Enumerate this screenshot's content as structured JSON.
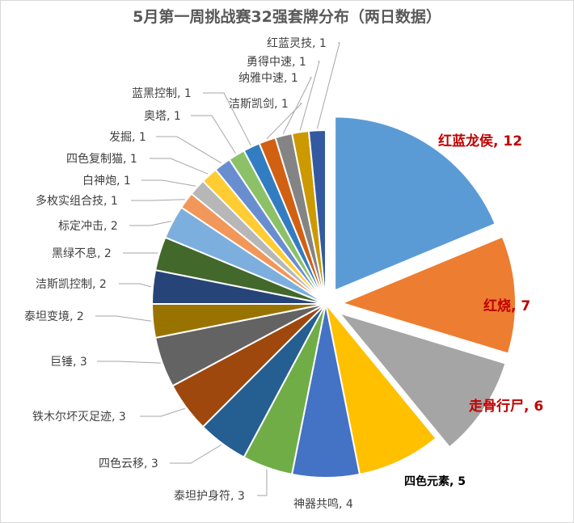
{
  "chart_data": {
    "type": "pie",
    "title": "5月第一周挑战赛32强套牌分布（两日数据）",
    "slices": [
      {
        "label": "红蓝龙侯",
        "value": 12,
        "color": "#5b9bd5",
        "exploded": true,
        "highlight": true
      },
      {
        "label": "红烧",
        "value": 7,
        "color": "#ed7d31",
        "exploded": true,
        "highlight": true
      },
      {
        "label": "走骨行尸",
        "value": 6,
        "color": "#a5a5a5",
        "exploded": true,
        "highlight": true
      },
      {
        "label": "四色元素",
        "value": 5,
        "color": "#ffc000",
        "exploded": false,
        "highlight": false
      },
      {
        "label": "神器共鸣",
        "value": 4,
        "color": "#4472c4",
        "exploded": false,
        "highlight": false
      },
      {
        "label": "泰坦护身符",
        "value": 3,
        "color": "#70ad47",
        "exploded": false,
        "highlight": false
      },
      {
        "label": "四色云移",
        "value": 3,
        "color": "#255e91",
        "exploded": false,
        "highlight": false
      },
      {
        "label": "铁木尔坏灭足迹",
        "value": 3,
        "color": "#9e480e",
        "exploded": false,
        "highlight": false
      },
      {
        "label": "巨锤",
        "value": 3,
        "color": "#636363",
        "exploded": false,
        "highlight": false
      },
      {
        "label": "泰坦变境",
        "value": 2,
        "color": "#997300",
        "exploded": false,
        "highlight": false
      },
      {
        "label": "洁斯凯控制",
        "value": 2,
        "color": "#264478",
        "exploded": false,
        "highlight": false
      },
      {
        "label": "黑绿不息",
        "value": 2,
        "color": "#43682b",
        "exploded": false,
        "highlight": false
      },
      {
        "label": "标定冲击",
        "value": 2,
        "color": "#7cafdd",
        "exploded": false,
        "highlight": false
      },
      {
        "label": "多枚实组合技",
        "value": 1,
        "color": "#f1975a",
        "exploded": false,
        "highlight": false
      },
      {
        "label": "白神炮",
        "value": 1,
        "color": "#b7b7b7",
        "exploded": false,
        "highlight": false
      },
      {
        "label": "四色复制猫",
        "value": 1,
        "color": "#ffcd33",
        "exploded": false,
        "highlight": false
      },
      {
        "label": "发掘",
        "value": 1,
        "color": "#698ed0",
        "exploded": false,
        "highlight": false
      },
      {
        "label": "奥塔",
        "value": 1,
        "color": "#8cc168",
        "exploded": false,
        "highlight": false
      },
      {
        "label": "蓝黑控制",
        "value": 1,
        "color": "#327dc2",
        "exploded": false,
        "highlight": false
      },
      {
        "label": "洁斯凯剑",
        "value": 1,
        "color": "#d26012",
        "exploded": false,
        "highlight": false
      },
      {
        "label": "纳雅中速",
        "value": 1,
        "color": "#848484",
        "exploded": false,
        "highlight": false
      },
      {
        "label": "勇得中速",
        "value": 1,
        "color": "#cc9a00",
        "exploded": false,
        "highlight": false
      },
      {
        "label": "红蓝灵技",
        "value": 1,
        "color": "#335aa1",
        "exploded": false,
        "highlight": false
      }
    ]
  }
}
